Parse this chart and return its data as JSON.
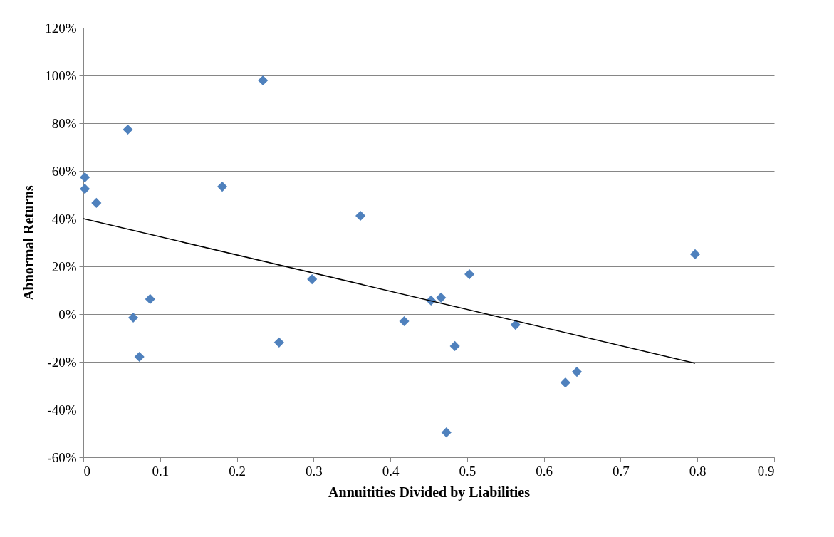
{
  "chart_data": {
    "type": "scatter",
    "xlabel": "Annuitities Divided by Liabilities",
    "ylabel": "Abnormal Returns",
    "xlim": [
      0,
      0.9
    ],
    "xticks": [
      0,
      0.1,
      0.2,
      0.3,
      0.4,
      0.5,
      0.6,
      0.7,
      0.8,
      0.9
    ],
    "ylim": [
      -60,
      120
    ],
    "yticks": [
      {
        "value": -60,
        "label": "-60%"
      },
      {
        "value": -40,
        "label": "-40%"
      },
      {
        "value": -20,
        "label": "-20%"
      },
      {
        "value": 0,
        "label": "0%"
      },
      {
        "value": 20,
        "label": "20%"
      },
      {
        "value": 40,
        "label": "40%"
      },
      {
        "value": 60,
        "label": "60%"
      },
      {
        "value": 80,
        "label": "80%"
      },
      {
        "value": 100,
        "label": "100%"
      },
      {
        "value": 120,
        "label": "120%"
      }
    ],
    "grid": "y",
    "marker": "diamond",
    "series": [
      {
        "color": "#4f81bd",
        "x": [
          0.002,
          0.002,
          0.017,
          0.058,
          0.065,
          0.073,
          0.087,
          0.181,
          0.234,
          0.255,
          0.298,
          0.361,
          0.418,
          0.453,
          0.466,
          0.473,
          0.484,
          0.503,
          0.563,
          0.628,
          0.643,
          0.797
        ],
        "values": [
          57.3,
          52.5,
          46.6,
          77.3,
          -1.5,
          -17.9,
          6.3,
          53.4,
          97.9,
          -11.9,
          14.6,
          41.2,
          -3.0,
          5.7,
          6.9,
          -49.6,
          -13.4,
          16.7,
          -4.5,
          -28.7,
          -24.2,
          25.1
        ]
      },
      {
        "type": "line",
        "color": "#000000",
        "marker": "none",
        "line_style": "solid",
        "x": [
          0,
          0.797
        ],
        "values": [
          40,
          -20.6
        ]
      }
    ]
  }
}
